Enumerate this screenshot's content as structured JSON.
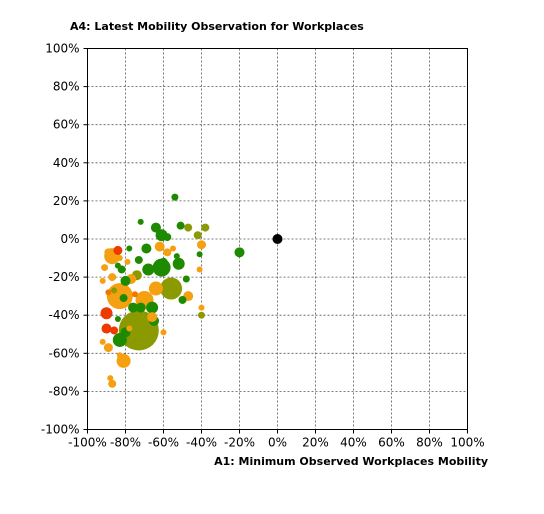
{
  "chart_data": {
    "type": "scatter",
    "title": "A4: Latest Mobility Observation for Workplaces",
    "xlabel": "A1: Minimum Observed Workplaces Mobility",
    "ylabel": "",
    "xlim": [
      -100,
      100
    ],
    "ylim": [
      -100,
      100
    ],
    "x_ticks": [
      "-100%",
      "-80%",
      "-60%",
      "-40%",
      "-20%",
      "0%",
      "20%",
      "40%",
      "60%",
      "80%",
      "100%"
    ],
    "y_ticks": [
      "100%",
      "80%",
      "60%",
      "40%",
      "20%",
      "0%",
      "-20%",
      "-40%",
      "-60%",
      "-80%",
      "-100%"
    ],
    "grid": true,
    "legend": "none",
    "colors": {
      "red": "#ee3a00",
      "dark_orange": "#ee7700",
      "orange": "#f5a010",
      "olive": "#8a9a00",
      "green": "#1e8a00",
      "black": "#000000"
    },
    "points": [
      {
        "x": 0,
        "y": 0,
        "size": 5,
        "color": "black"
      },
      {
        "x": -20,
        "y": -7,
        "size": 5,
        "color": "green"
      },
      {
        "x": -54,
        "y": 22,
        "size": 3.5,
        "color": "green"
      },
      {
        "x": -72,
        "y": 9,
        "size": 3,
        "color": "green"
      },
      {
        "x": -73,
        "y": -48,
        "size": 20,
        "color": "olive"
      },
      {
        "x": -56,
        "y": -26,
        "size": 11,
        "color": "olive"
      },
      {
        "x": -61,
        "y": -15,
        "size": 9,
        "color": "green"
      },
      {
        "x": -83,
        "y": -30,
        "size": 13,
        "color": "orange"
      },
      {
        "x": -70,
        "y": -32,
        "size": 9,
        "color": "orange"
      },
      {
        "x": -87,
        "y": -9,
        "size": 8,
        "color": "orange"
      },
      {
        "x": -81,
        "y": -64,
        "size": 7,
        "color": "orange"
      },
      {
        "x": -90,
        "y": -39,
        "size": 6,
        "color": "red"
      },
      {
        "x": -90,
        "y": -47,
        "size": 5,
        "color": "red"
      },
      {
        "x": -84,
        "y": -6,
        "size": 4.5,
        "color": "red"
      },
      {
        "x": -86,
        "y": -48,
        "size": 4,
        "color": "red"
      },
      {
        "x": -83,
        "y": -53,
        "size": 7,
        "color": "green"
      },
      {
        "x": -80,
        "y": -49,
        "size": 5,
        "color": "green"
      },
      {
        "x": -64,
        "y": 6,
        "size": 5,
        "color": "green"
      },
      {
        "x": -61,
        "y": 2,
        "size": 6,
        "color": "green"
      },
      {
        "x": -58,
        "y": 1,
        "size": 4,
        "color": "green"
      },
      {
        "x": -51,
        "y": 7,
        "size": 4,
        "color": "green"
      },
      {
        "x": -47,
        "y": 6,
        "size": 4,
        "color": "olive"
      },
      {
        "x": -38,
        "y": 6,
        "size": 4,
        "color": "olive"
      },
      {
        "x": -42,
        "y": 2,
        "size": 4,
        "color": "olive"
      },
      {
        "x": -40,
        "y": -3,
        "size": 4.5,
        "color": "orange"
      },
      {
        "x": -41,
        "y": -8,
        "size": 3,
        "color": "green"
      },
      {
        "x": -41,
        "y": -16,
        "size": 3,
        "color": "orange"
      },
      {
        "x": -48,
        "y": -21,
        "size": 3.5,
        "color": "green"
      },
      {
        "x": -47,
        "y": -30,
        "size": 5,
        "color": "orange"
      },
      {
        "x": -40,
        "y": -36,
        "size": 3,
        "color": "orange"
      },
      {
        "x": -40,
        "y": -40,
        "size": 3.5,
        "color": "olive"
      },
      {
        "x": -69,
        "y": -5,
        "size": 5,
        "color": "green"
      },
      {
        "x": -62,
        "y": -4,
        "size": 5,
        "color": "orange"
      },
      {
        "x": -58,
        "y": -7,
        "size": 4,
        "color": "orange"
      },
      {
        "x": -52,
        "y": -13,
        "size": 6,
        "color": "green"
      },
      {
        "x": -68,
        "y": -16,
        "size": 6,
        "color": "green"
      },
      {
        "x": -73,
        "y": -11,
        "size": 4,
        "color": "green"
      },
      {
        "x": -74,
        "y": -19,
        "size": 5,
        "color": "olive"
      },
      {
        "x": -77,
        "y": -21,
        "size": 5,
        "color": "orange"
      },
      {
        "x": -80,
        "y": -22,
        "size": 5,
        "color": "green"
      },
      {
        "x": -82,
        "y": -16,
        "size": 4,
        "color": "green"
      },
      {
        "x": -84,
        "y": -14,
        "size": 3,
        "color": "green"
      },
      {
        "x": -79,
        "y": -12,
        "size": 3,
        "color": "orange"
      },
      {
        "x": -78,
        "y": -5,
        "size": 3,
        "color": "green"
      },
      {
        "x": -83,
        "y": -10,
        "size": 3,
        "color": "orange"
      },
      {
        "x": -89,
        "y": -7,
        "size": 4,
        "color": "orange"
      },
      {
        "x": -91,
        "y": -15,
        "size": 3.5,
        "color": "orange"
      },
      {
        "x": -87,
        "y": -20,
        "size": 4,
        "color": "orange"
      },
      {
        "x": -92,
        "y": -22,
        "size": 3,
        "color": "orange"
      },
      {
        "x": -89,
        "y": -28,
        "size": 3,
        "color": "dark_orange"
      },
      {
        "x": -86,
        "y": -27,
        "size": 3,
        "color": "olive"
      },
      {
        "x": -81,
        "y": -31,
        "size": 4,
        "color": "green"
      },
      {
        "x": -76,
        "y": -36,
        "size": 5,
        "color": "green"
      },
      {
        "x": -72,
        "y": -36,
        "size": 5,
        "color": "green"
      },
      {
        "x": -66,
        "y": -36,
        "size": 6,
        "color": "green"
      },
      {
        "x": -65,
        "y": -43,
        "size": 5,
        "color": "green"
      },
      {
        "x": -66,
        "y": -41,
        "size": 5,
        "color": "orange"
      },
      {
        "x": -60,
        "y": -49,
        "size": 3,
        "color": "orange"
      },
      {
        "x": -84,
        "y": -42,
        "size": 3,
        "color": "green"
      },
      {
        "x": -89,
        "y": -57,
        "size": 4.5,
        "color": "orange"
      },
      {
        "x": -92,
        "y": -54,
        "size": 3,
        "color": "orange"
      },
      {
        "x": -88,
        "y": -73,
        "size": 3,
        "color": "orange"
      },
      {
        "x": -87,
        "y": -76,
        "size": 4,
        "color": "orange"
      },
      {
        "x": -83,
        "y": -61,
        "size": 3,
        "color": "orange"
      },
      {
        "x": -78,
        "y": -47,
        "size": 3,
        "color": "orange"
      },
      {
        "x": -75,
        "y": -29,
        "size": 3,
        "color": "dark_orange"
      },
      {
        "x": -71,
        "y": -40,
        "size": 3,
        "color": "olive"
      },
      {
        "x": -60,
        "y": -12,
        "size": 4,
        "color": "green"
      },
      {
        "x": -53,
        "y": -9,
        "size": 3,
        "color": "green"
      },
      {
        "x": -50,
        "y": -32,
        "size": 4,
        "color": "green"
      },
      {
        "x": -55,
        "y": -5,
        "size": 3,
        "color": "orange"
      },
      {
        "x": -64,
        "y": -26,
        "size": 7,
        "color": "orange"
      }
    ]
  }
}
